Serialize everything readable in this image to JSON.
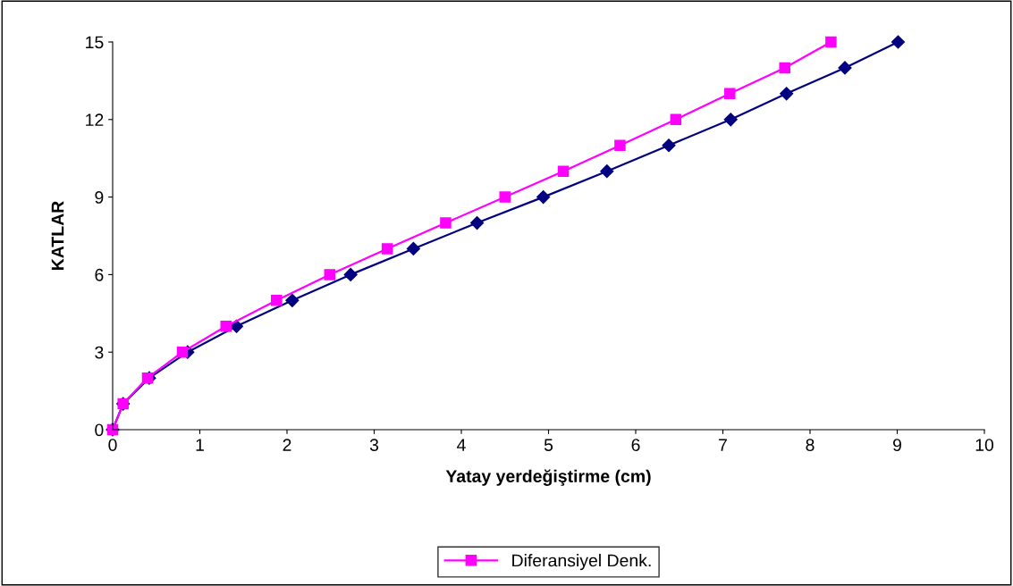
{
  "chart_data": {
    "type": "line",
    "xlabel": "Yatay yerdeğiştirme (cm)",
    "ylabel": "KATLAR",
    "xlim": [
      0,
      10
    ],
    "xticks": [
      0,
      1,
      2,
      3,
      4,
      5,
      6,
      7,
      8,
      9,
      10
    ],
    "ylim": [
      0,
      15
    ],
    "yticks": [
      0,
      3,
      6,
      9,
      12,
      15
    ],
    "grid": false,
    "legend": "bottom",
    "series": [
      {
        "color": "#000080",
        "marker": "diamond",
        "x": [
          0,
          0.12,
          0.42,
          0.86,
          1.42,
          2.06,
          2.73,
          3.45,
          4.18,
          4.94,
          5.67,
          6.38,
          7.09,
          7.73,
          8.4,
          9.01
        ],
        "values": [
          0,
          1,
          2,
          3,
          4,
          5,
          6,
          7,
          8,
          9,
          10,
          11,
          12,
          13,
          14,
          15
        ]
      },
      {
        "name": "Diferansiyel Denk.",
        "color": "#ff00ff",
        "marker": "square",
        "x": [
          0,
          0.12,
          0.4,
          0.8,
          1.3,
          1.88,
          2.49,
          3.15,
          3.82,
          4.5,
          5.17,
          5.82,
          6.46,
          7.08,
          7.71,
          8.24
        ],
        "values": [
          0,
          1,
          2,
          3,
          4,
          5,
          6,
          7,
          8,
          9,
          10,
          11,
          12,
          13,
          14,
          15
        ]
      }
    ]
  }
}
